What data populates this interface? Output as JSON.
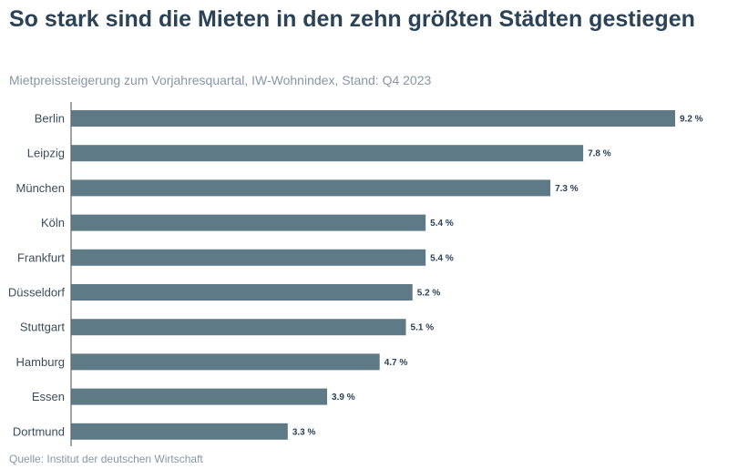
{
  "chart_data": {
    "type": "bar",
    "orientation": "horizontal",
    "title": "So stark sind die Mieten in den zehn größten Städten gestiegen",
    "subtitle": "Mietpreissteigerung zum Vorjahresquartal, IW-Wohnindex, Stand: Q4 2023",
    "source": "Quelle: Institut der deutschen Wirtschaft",
    "categories": [
      "Berlin",
      "Leipzig",
      "München",
      "Köln",
      "Frankfurt",
      "Düsseldorf",
      "Stuttgart",
      "Hamburg",
      "Essen",
      "Dortmund"
    ],
    "values": [
      9.2,
      7.8,
      7.3,
      5.4,
      5.4,
      5.2,
      5.1,
      4.7,
      3.9,
      3.3
    ],
    "value_labels": [
      "9.2 %",
      "7.8 %",
      "7.3 %",
      "5.4 %",
      "5.4 %",
      "5.2 %",
      "5.1 %",
      "4.7 %",
      "3.9 %",
      "3.3 %"
    ],
    "unit": "%",
    "xlim": [
      0,
      9.2
    ],
    "grid": false,
    "bar_color": "#5f7a87"
  }
}
